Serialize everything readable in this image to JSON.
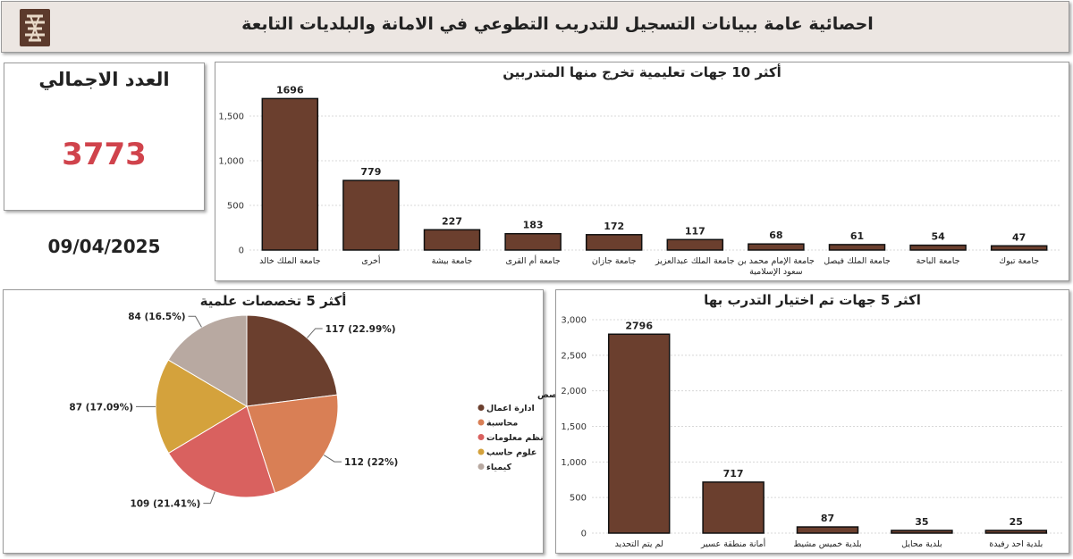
{
  "header": {
    "title": "احصائية عامة ببيانات التسجيل للتدريب التطوعي في الامانة والبلديات التابعة"
  },
  "summary": {
    "total_label": "العدد الاجمالي",
    "total_value": "3773",
    "date": "09/04/2025"
  },
  "colors": {
    "bar_fill": "#6b3f2e",
    "total_value": "#d0434c",
    "header_bg": "#ece6e2"
  },
  "chart_data": [
    {
      "type": "bar",
      "title": "أكثر 10 جهات تعليمية تخرج منها المتدربين",
      "categories": [
        [
          "جامعة الملك خالد"
        ],
        [
          "أخرى"
        ],
        [
          "جامعة بيشة"
        ],
        [
          "جامعة أم القرى"
        ],
        [
          "جامعة جازان"
        ],
        [
          "جامعة الملك عبدالعزيز"
        ],
        [
          "جامعة الإمام محمد بن",
          "سعود الإسلامية"
        ],
        [
          "جامعة الملك فيصل"
        ],
        [
          "جامعة الباحة"
        ],
        [
          "جامعة تبوك"
        ]
      ],
      "values": [
        1696,
        779,
        227,
        183,
        172,
        117,
        68,
        61,
        54,
        47
      ],
      "ylim": [
        0,
        1800
      ],
      "yticks": [
        0,
        500,
        1000,
        1500
      ],
      "ytick_labels": [
        "0",
        "500",
        "1,000",
        "1,500"
      ],
      "grid": true
    },
    {
      "type": "pie",
      "title": "أكثر 5 تخصصات علمية",
      "legend_title": "التخصص",
      "legend_position": "right",
      "slices": [
        {
          "label": "ادارة اعمال",
          "value": 117,
          "display": "117 (22.99%)",
          "color": "#6b3f2e"
        },
        {
          "label": "محاسبة",
          "value": 112,
          "display": "112 (22%)",
          "color": "#d97f55"
        },
        {
          "label": "نظم معلومات",
          "value": 109,
          "display": "109 (21.41%)",
          "color": "#d9615f"
        },
        {
          "label": "علوم حاسب",
          "value": 87,
          "display": "87 (17.09%)",
          "color": "#d4a23c"
        },
        {
          "label": "كيمياء",
          "value": 84,
          "display": "84 (16.5%)",
          "color": "#b8a9a1"
        }
      ]
    },
    {
      "type": "bar",
      "title": "اكثر 5 جهات تم اختيار التدرب بها",
      "categories": [
        [
          "لم يتم التحديد"
        ],
        [
          "أمانة منطقة عسير"
        ],
        [
          "بلدية خميس مشيط"
        ],
        [
          "بلدية محايل"
        ],
        [
          "بلدية احد رفيدة"
        ]
      ],
      "values": [
        2796,
        717,
        87,
        35,
        25
      ],
      "ylim": [
        0,
        3000
      ],
      "yticks": [
        0,
        500,
        1000,
        1500,
        2000,
        2500,
        3000
      ],
      "ytick_labels": [
        "0",
        "500",
        "1,000",
        "1,500",
        "2,000",
        "2,500",
        "3,000"
      ],
      "grid": true
    }
  ]
}
